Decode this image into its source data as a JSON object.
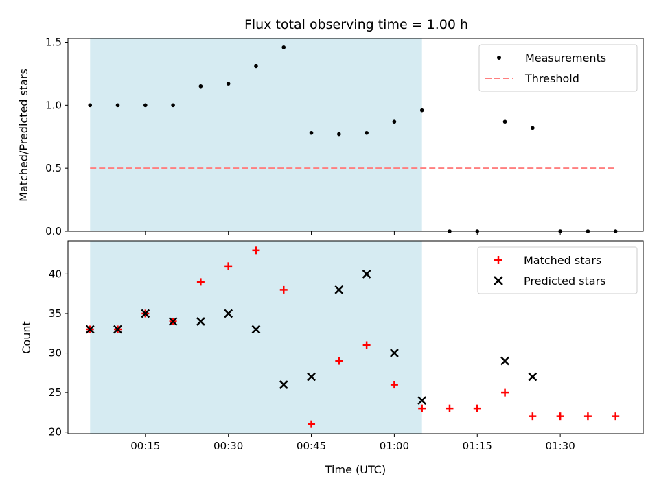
{
  "figure": {
    "title": "Flux total observing time = 1.00 h",
    "xlabel": "Time (UTC)"
  },
  "colors": {
    "shade": "#add8e6",
    "measurement": "#000000",
    "threshold": "#ff7f7f",
    "matched": "#ff0000",
    "predicted": "#000000"
  },
  "chart_data": [
    {
      "type": "scatter",
      "ylabel": "Matched/Predicted stars",
      "xlim": [
        "00:01",
        "01:45"
      ],
      "ylim": [
        0,
        1.53
      ],
      "yticks": [
        0.0,
        0.5,
        1.0,
        1.5
      ],
      "ytick_labels": [
        "0.0",
        "0.5",
        "1.0",
        "1.5"
      ],
      "shaded_span": [
        "00:05",
        "01:05"
      ],
      "legend_position": "upper right",
      "series": [
        {
          "name": "Measurements",
          "marker": "dot",
          "x": [
            "00:05",
            "00:10",
            "00:15",
            "00:20",
            "00:25",
            "00:30",
            "00:35",
            "00:40",
            "00:45",
            "00:50",
            "00:55",
            "01:00",
            "01:05",
            "01:10",
            "01:15",
            "01:20",
            "01:25",
            "01:30",
            "01:35",
            "01:40"
          ],
          "y": [
            1.0,
            1.0,
            1.0,
            1.0,
            1.15,
            1.17,
            1.31,
            1.46,
            0.78,
            0.77,
            0.78,
            0.87,
            0.96,
            0.0,
            0.0,
            0.87,
            0.82,
            0.0,
            0.0,
            0.0
          ]
        },
        {
          "name": "Threshold",
          "style": "dashed",
          "x": [
            "00:05",
            "01:40"
          ],
          "y": [
            0.5,
            0.5
          ]
        }
      ]
    },
    {
      "type": "scatter",
      "ylabel": "Count",
      "xlim": [
        "00:01",
        "01:45"
      ],
      "ylim": [
        19.8,
        44.2
      ],
      "yticks": [
        20,
        25,
        30,
        35,
        40
      ],
      "ytick_labels": [
        "20",
        "25",
        "30",
        "35",
        "40"
      ],
      "xticks": [
        "00:15",
        "00:30",
        "00:45",
        "01:00",
        "01:15",
        "01:30"
      ],
      "xtick_labels": [
        "00:15",
        "00:30",
        "00:45",
        "01:00",
        "01:15",
        "01:30"
      ],
      "shaded_span": [
        "00:05",
        "01:05"
      ],
      "legend_position": "upper right",
      "series": [
        {
          "name": "Matched stars",
          "marker": "plus",
          "x": [
            "00:05",
            "00:10",
            "00:15",
            "00:20",
            "00:25",
            "00:30",
            "00:35",
            "00:40",
            "00:45",
            "00:50",
            "00:55",
            "01:00",
            "01:05",
            "01:10",
            "01:15",
            "01:20",
            "01:25",
            "01:30",
            "01:35",
            "01:40"
          ],
          "y": [
            33,
            33,
            35,
            34,
            39,
            41,
            43,
            38,
            21,
            29,
            31,
            26,
            23,
            23,
            23,
            25,
            22,
            22,
            22,
            22
          ]
        },
        {
          "name": "Predicted stars",
          "marker": "x",
          "x": [
            "00:05",
            "00:10",
            "00:15",
            "00:20",
            "00:25",
            "00:30",
            "00:35",
            "00:40",
            "00:45",
            "00:50",
            "00:55",
            "01:00",
            "01:05",
            "01:20",
            "01:25"
          ],
          "y": [
            33,
            33,
            35,
            34,
            34,
            35,
            33,
            26,
            27,
            38,
            40,
            30,
            24,
            29,
            27
          ]
        }
      ]
    }
  ]
}
